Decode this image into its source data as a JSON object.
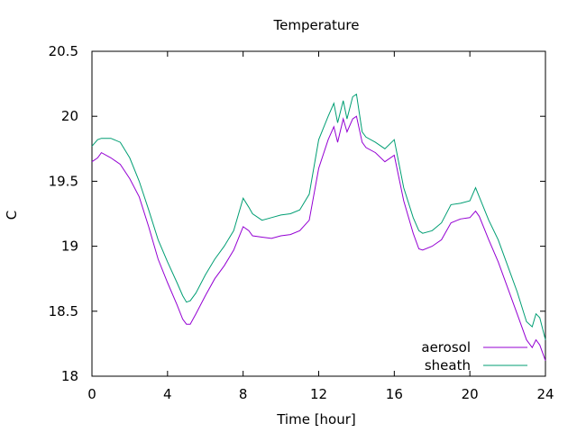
{
  "chart_data": {
    "type": "line",
    "title": "Temperature",
    "xlabel": "Time [hour]",
    "ylabel": "C",
    "xlim": [
      0,
      24
    ],
    "ylim": [
      18,
      20.5
    ],
    "x_ticks": [
      "0",
      "4",
      "8",
      "12",
      "16",
      "20",
      "24"
    ],
    "y_ticks": [
      "18",
      "18.5",
      "19",
      "19.5",
      "20",
      "20.5"
    ],
    "grid": false,
    "legend_position": "bottom-right",
    "series": [
      {
        "name": "aerosol",
        "color": "#9400d3",
        "points": [
          [
            0,
            19.65
          ],
          [
            0.3,
            19.68
          ],
          [
            0.5,
            19.72
          ],
          [
            1.0,
            19.68
          ],
          [
            1.5,
            19.63
          ],
          [
            2.0,
            19.52
          ],
          [
            2.5,
            19.38
          ],
          [
            3.0,
            19.15
          ],
          [
            3.5,
            18.9
          ],
          [
            4.0,
            18.72
          ],
          [
            4.5,
            18.55
          ],
          [
            4.8,
            18.44
          ],
          [
            5.0,
            18.4
          ],
          [
            5.2,
            18.4
          ],
          [
            5.5,
            18.48
          ],
          [
            6.0,
            18.62
          ],
          [
            6.5,
            18.75
          ],
          [
            7.0,
            18.85
          ],
          [
            7.5,
            18.97
          ],
          [
            8.0,
            19.15
          ],
          [
            8.3,
            19.12
          ],
          [
            8.5,
            19.08
          ],
          [
            9.0,
            19.07
          ],
          [
            9.5,
            19.06
          ],
          [
            10.0,
            19.08
          ],
          [
            10.5,
            19.09
          ],
          [
            11.0,
            19.12
          ],
          [
            11.5,
            19.2
          ],
          [
            12.0,
            19.6
          ],
          [
            12.5,
            19.82
          ],
          [
            12.8,
            19.92
          ],
          [
            13.0,
            19.8
          ],
          [
            13.3,
            19.98
          ],
          [
            13.5,
            19.88
          ],
          [
            13.8,
            19.98
          ],
          [
            14.0,
            20.0
          ],
          [
            14.3,
            19.8
          ],
          [
            14.5,
            19.76
          ],
          [
            15.0,
            19.72
          ],
          [
            15.5,
            19.65
          ],
          [
            16.0,
            19.7
          ],
          [
            16.5,
            19.35
          ],
          [
            17.0,
            19.1
          ],
          [
            17.3,
            18.98
          ],
          [
            17.5,
            18.97
          ],
          [
            18.0,
            19.0
          ],
          [
            18.5,
            19.05
          ],
          [
            19.0,
            19.18
          ],
          [
            19.5,
            19.21
          ],
          [
            20.0,
            19.22
          ],
          [
            20.3,
            19.27
          ],
          [
            20.5,
            19.23
          ],
          [
            21.0,
            19.05
          ],
          [
            21.5,
            18.88
          ],
          [
            22.0,
            18.68
          ],
          [
            22.5,
            18.48
          ],
          [
            23.0,
            18.28
          ],
          [
            23.3,
            18.22
          ],
          [
            23.5,
            18.28
          ],
          [
            23.7,
            18.24
          ],
          [
            24.0,
            18.12
          ]
        ]
      },
      {
        "name": "sheath",
        "color": "#009e73",
        "points": [
          [
            0,
            19.77
          ],
          [
            0.3,
            19.82
          ],
          [
            0.5,
            19.83
          ],
          [
            1.0,
            19.83
          ],
          [
            1.5,
            19.8
          ],
          [
            2.0,
            19.68
          ],
          [
            2.5,
            19.5
          ],
          [
            3.0,
            19.28
          ],
          [
            3.5,
            19.05
          ],
          [
            4.0,
            18.88
          ],
          [
            4.5,
            18.72
          ],
          [
            4.8,
            18.62
          ],
          [
            5.0,
            18.57
          ],
          [
            5.2,
            18.58
          ],
          [
            5.5,
            18.64
          ],
          [
            6.0,
            18.78
          ],
          [
            6.5,
            18.9
          ],
          [
            7.0,
            19.0
          ],
          [
            7.5,
            19.12
          ],
          [
            8.0,
            19.37
          ],
          [
            8.3,
            19.3
          ],
          [
            8.5,
            19.25
          ],
          [
            9.0,
            19.2
          ],
          [
            9.5,
            19.22
          ],
          [
            10.0,
            19.24
          ],
          [
            10.5,
            19.25
          ],
          [
            11.0,
            19.28
          ],
          [
            11.5,
            19.4
          ],
          [
            12.0,
            19.82
          ],
          [
            12.5,
            20.0
          ],
          [
            12.8,
            20.1
          ],
          [
            13.0,
            19.95
          ],
          [
            13.3,
            20.12
          ],
          [
            13.5,
            19.98
          ],
          [
            13.8,
            20.15
          ],
          [
            14.0,
            20.17
          ],
          [
            14.3,
            19.88
          ],
          [
            14.5,
            19.84
          ],
          [
            15.0,
            19.8
          ],
          [
            15.5,
            19.75
          ],
          [
            16.0,
            19.82
          ],
          [
            16.5,
            19.45
          ],
          [
            17.0,
            19.22
          ],
          [
            17.3,
            19.12
          ],
          [
            17.5,
            19.1
          ],
          [
            18.0,
            19.12
          ],
          [
            18.5,
            19.18
          ],
          [
            19.0,
            19.32
          ],
          [
            19.5,
            19.33
          ],
          [
            20.0,
            19.35
          ],
          [
            20.3,
            19.45
          ],
          [
            20.5,
            19.38
          ],
          [
            21.0,
            19.2
          ],
          [
            21.5,
            19.05
          ],
          [
            22.0,
            18.85
          ],
          [
            22.5,
            18.65
          ],
          [
            23.0,
            18.42
          ],
          [
            23.3,
            18.38
          ],
          [
            23.5,
            18.48
          ],
          [
            23.7,
            18.45
          ],
          [
            24.0,
            18.28
          ]
        ]
      }
    ]
  }
}
